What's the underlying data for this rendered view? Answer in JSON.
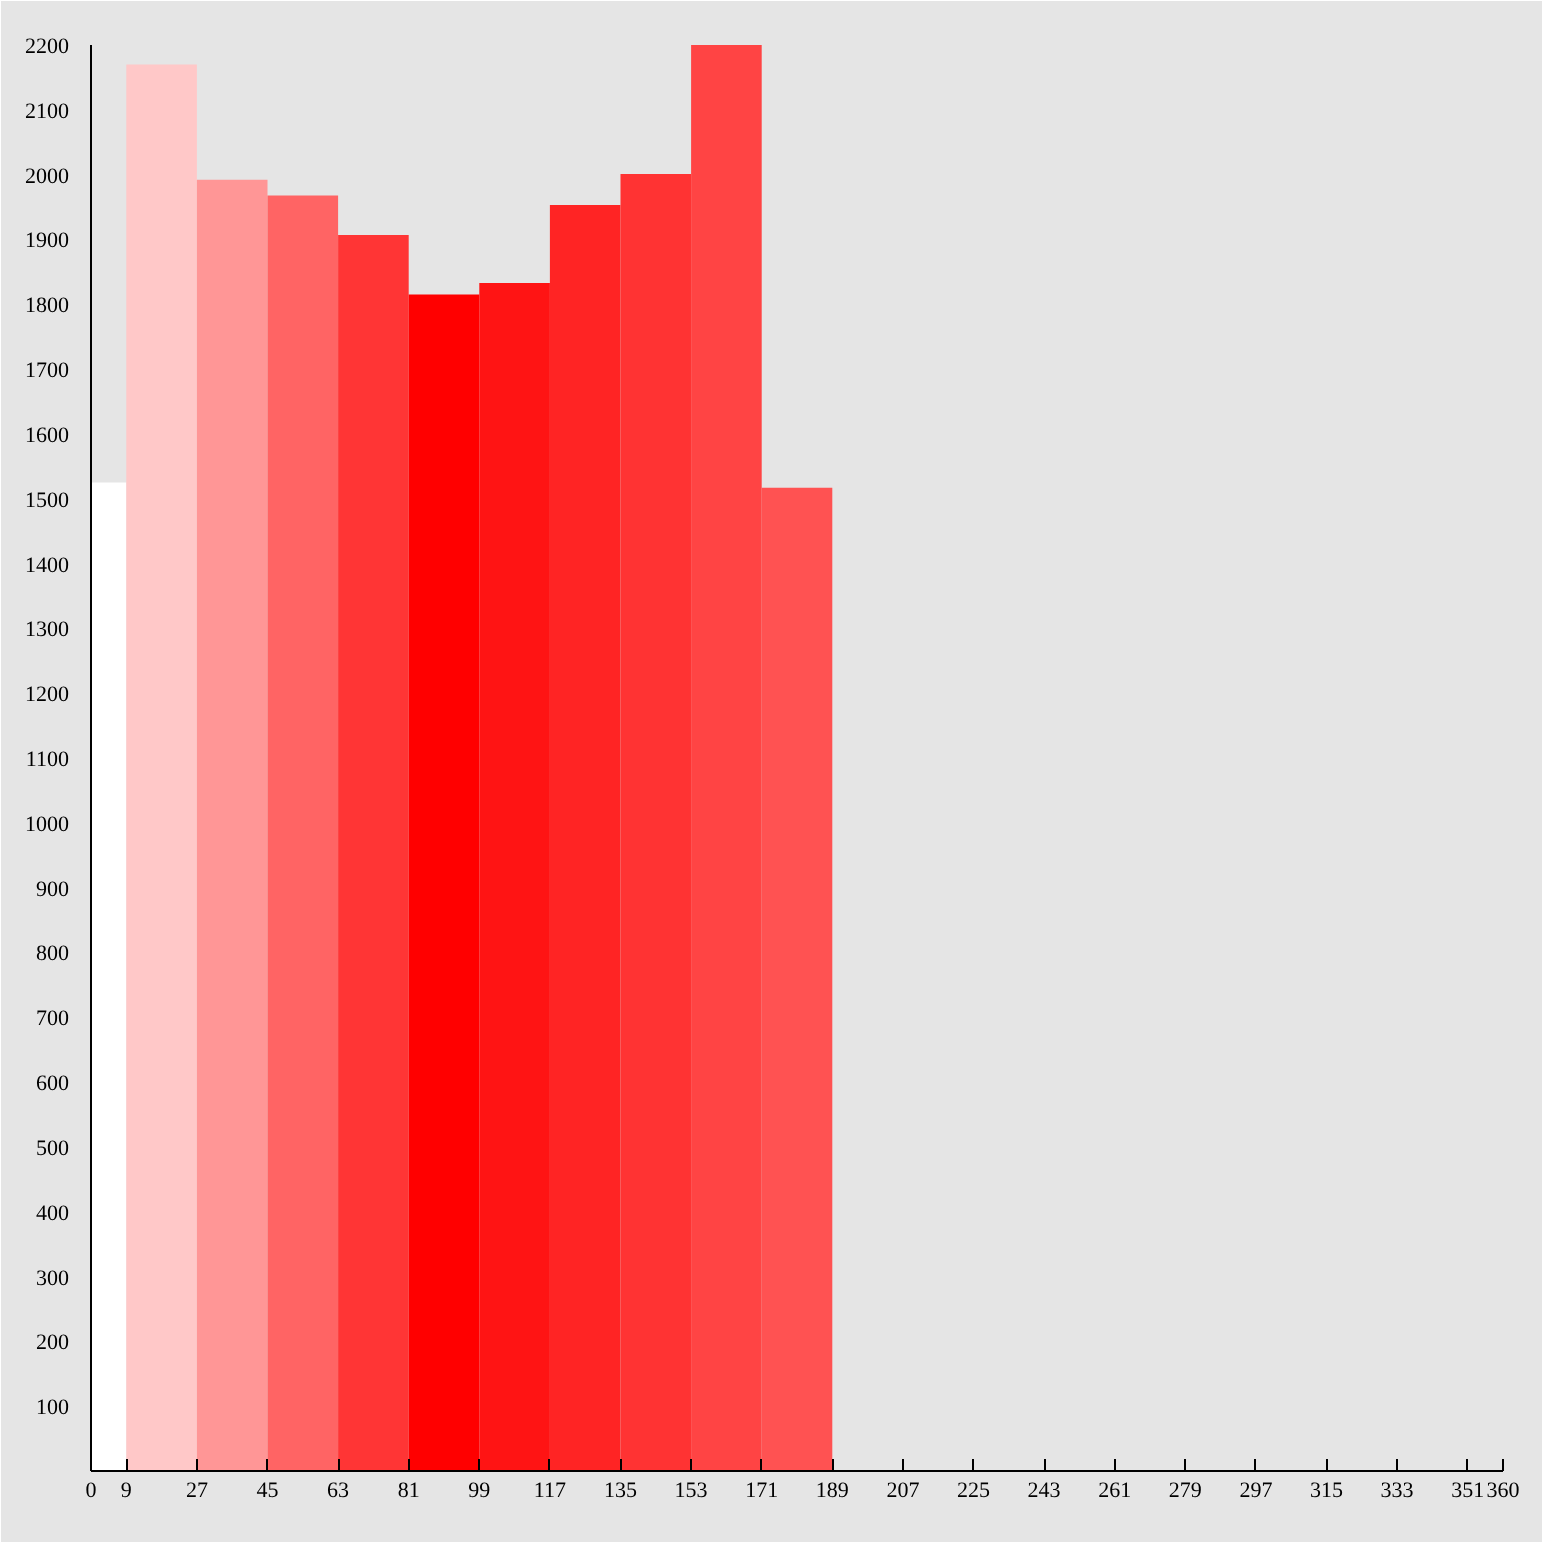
{
  "chart_data": {
    "type": "histogram",
    "bins": [
      0,
      9,
      27,
      45,
      63,
      81,
      99,
      117,
      135,
      153,
      171,
      189
    ],
    "values": [
      1525,
      2170,
      1992,
      1968,
      1907,
      1815,
      1833,
      1953,
      2001,
      2200,
      1517
    ],
    "colors": [
      "#ffffff",
      "#ffc8c8",
      "#ff9696",
      "#ff6464",
      "#ff3535",
      "#ff0000",
      "#ff1414",
      "#ff2424",
      "#ff3333",
      "#ff4444",
      "#ff5252"
    ],
    "xlim": [
      0,
      360
    ],
    "ylim": [
      0,
      2200
    ],
    "xticks": [
      0,
      9,
      27,
      45,
      63,
      81,
      99,
      117,
      135,
      153,
      171,
      189,
      207,
      225,
      243,
      261,
      279,
      297,
      315,
      333,
      351,
      360
    ],
    "yticks": [
      100,
      200,
      300,
      400,
      500,
      600,
      700,
      800,
      900,
      1000,
      1100,
      1200,
      1300,
      1400,
      1500,
      1600,
      1700,
      1800,
      1900,
      2000,
      2100,
      2200
    ]
  }
}
